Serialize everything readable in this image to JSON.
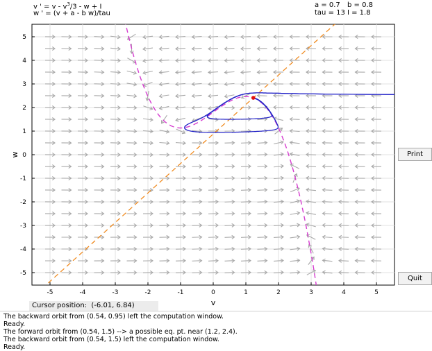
{
  "equations": {
    "line1_prefix": "v ' = v - v",
    "line1_sup": "3",
    "line1_suffix": "/3 - w + I",
    "line2": "w ' = (v + a - b w)/tau"
  },
  "params": {
    "a": "a = 0.7",
    "b": "b = 0.8",
    "tau": "tau = 13",
    "I": "I = 1.8"
  },
  "plot": {
    "xlabel": "v",
    "ylabel": "w",
    "xticks": [
      "-5",
      "-4",
      "-3",
      "-2",
      "-1",
      "0",
      "1",
      "2",
      "3",
      "4",
      "5"
    ],
    "yticks": [
      "5",
      "4",
      "3",
      "2",
      "1",
      "0",
      "-1",
      "-2",
      "-3",
      "-4",
      "-5"
    ],
    "colors": {
      "v_nullcline": "#d63cd0",
      "w_nullcline": "#f08a1e",
      "trajectory": "#2424c8",
      "equilibrium": "#e01010",
      "field_arrows": "#a9a9a9",
      "grid": "#e0e0e0"
    }
  },
  "buttons": {
    "print": "Print",
    "quit": "Quit"
  },
  "cursor": {
    "label": "Cursor position:",
    "value": "(-6.01, 6.84)"
  },
  "log": [
    "The backward orbit from (0.54, 0.95) left the computation window.",
    "Ready.",
    "The forward orbit from (0.54, 1.5) --> a possible eq. pt. near (1.2, 2.4).",
    "The backward orbit from (0.54, 1.5) left the computation window.",
    "Ready."
  ]
}
